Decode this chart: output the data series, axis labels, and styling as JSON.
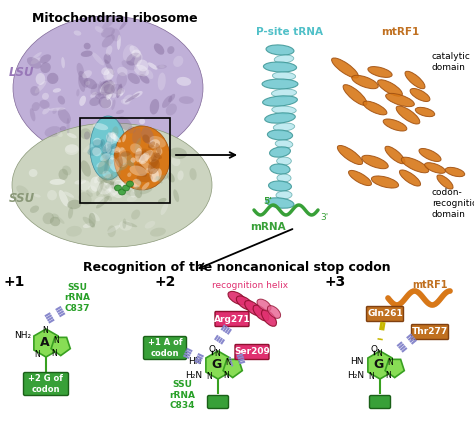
{
  "title_top": "Mitochondrial ribosome",
  "title_bottom": "Recognition of the noncanonical stop codon",
  "lsu_label": "LSU",
  "ssu_label": "SSU",
  "psite_trna_label": "P-site tRNA",
  "mtrf1_label": "mtRF1",
  "mrna_label": "mRNA",
  "catalytic_domain_label": "catalytic\ndomain",
  "codon_recognition_label": "codon-\nrecognition\ndomain",
  "five_prime": "5'",
  "three_prime": "3'",
  "pos1_label": "+1",
  "pos2_label": "+2",
  "pos3_label": "+3",
  "ssu_rRNA_C837": "SSU\nrRNA\nC837",
  "ssu_rRNA_C834": "SSU\nrRNA\nC834",
  "plus1_A_codon": "+1 A of\ncodon",
  "plus2_G_codon": "+2 G of\ncodon",
  "recognition_helix": "recognition helix",
  "Arg271": "Arg271",
  "Ser209": "Ser209",
  "Gln261": "Gln261",
  "Thr277": "Thr277",
  "mtRF1_label3": "mtRF1",
  "bg_color": "#ffffff",
  "lsu_color_dark": "#9080b0",
  "lsu_color_light": "#c0b0d8",
  "ssu_color_dark": "#a0a898",
  "ssu_color_light": "#d0d8c8",
  "trna_color": "#70c8d0",
  "trna_dark": "#409898",
  "mtrf1_color": "#d87818",
  "mtrf1_dark": "#a05010",
  "mrna_color": "#38a038",
  "nucleotide_fill": "#88dd55",
  "nucleotide_border": "#38a020",
  "green_box_color": "#38a038",
  "pink_helix_color": "#e03070",
  "pink_label_color": "#e03070",
  "orange_label_color": "#c07020",
  "green_label_color": "#28a028",
  "dash_color": "#8888cc",
  "yellow_dash_color": "#c8b800",
  "font_size_title": 9,
  "font_size_small": 6.5,
  "font_size_pos": 10
}
